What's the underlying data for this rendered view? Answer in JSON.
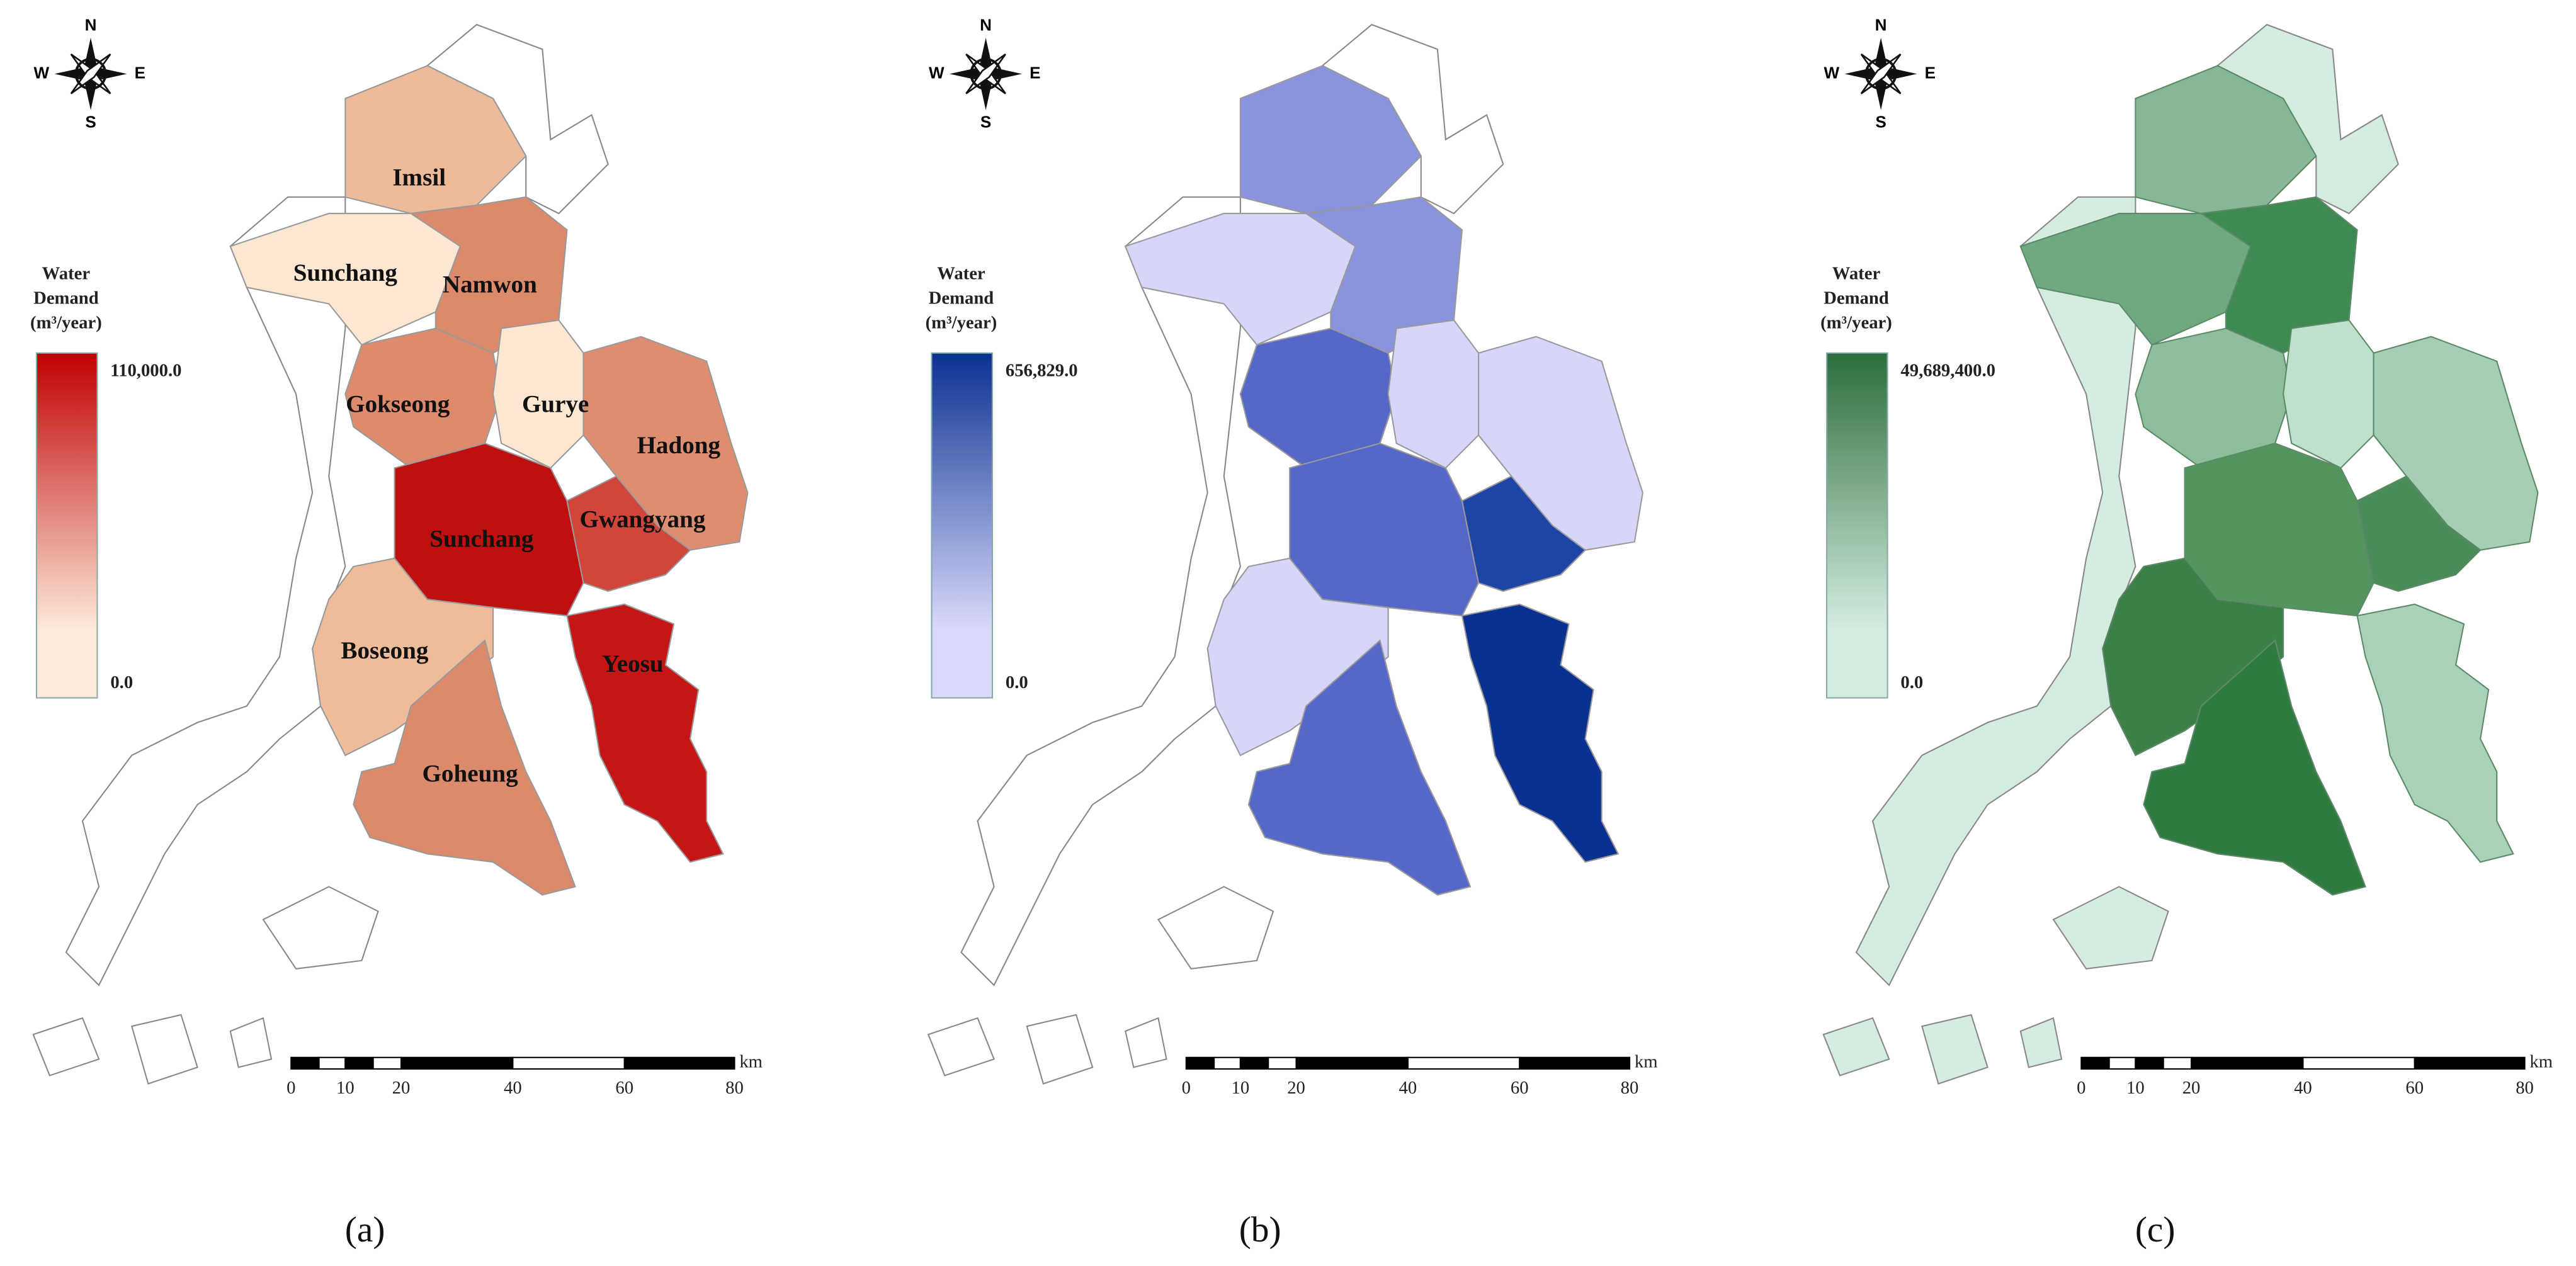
{
  "panels": [
    {
      "caption": "(a)",
      "compass": {
        "n": "N",
        "e": "E",
        "s": "S",
        "w": "W"
      },
      "legend": {
        "title": [
          "Water",
          "Demand",
          "(m³/year)"
        ],
        "max": "110,000.0",
        "min": "0.0",
        "colors": [
          "#fdeadb",
          "#c00000"
        ]
      },
      "scale": {
        "labels": [
          "0",
          "10",
          "20",
          "40",
          "60",
          "80"
        ],
        "unit": "km"
      },
      "regions": [
        "Imsil",
        "Sunchang",
        "Namwon",
        "Gokseong",
        "Gurye",
        "Hadong",
        "Sunchang",
        "Gwangyang",
        "Boseong",
        "Yeosu",
        "Goheung"
      ]
    },
    {
      "caption": "(b)",
      "compass": {
        "n": "N",
        "e": "E",
        "s": "S",
        "w": "W"
      },
      "legend": {
        "title": [
          "Water",
          "Demand",
          "(m³/year)"
        ],
        "max": "656,829.0",
        "min": "0.0",
        "colors": [
          "#d9d9fb",
          "#0a3191"
        ]
      },
      "scale": {
        "labels": [
          "0",
          "10",
          "20",
          "40",
          "60",
          "80"
        ],
        "unit": "km"
      }
    },
    {
      "caption": "(c)",
      "compass": {
        "n": "N",
        "e": "E",
        "s": "S",
        "w": "W"
      },
      "legend": {
        "title": [
          "Water",
          "Demand",
          "(m³/year)"
        ],
        "max": "49,689,400.0",
        "min": "0.0",
        "colors": [
          "#d5ece0",
          "#2b6e3c"
        ]
      },
      "scale": {
        "labels": [
          "0",
          "10",
          "20",
          "40",
          "60",
          "80"
        ],
        "unit": "km"
      }
    }
  ]
}
